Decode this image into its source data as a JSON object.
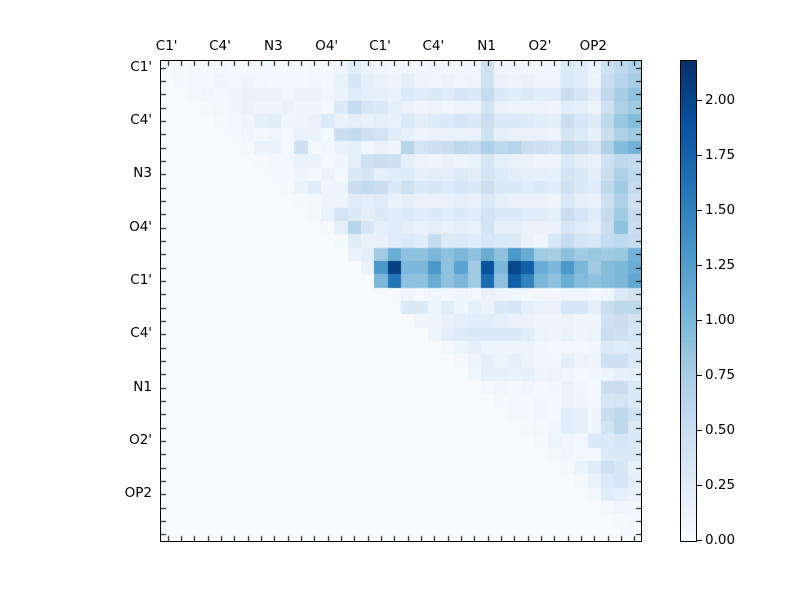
{
  "chart_data": {
    "type": "heatmap",
    "title": "",
    "colormap": "Blues",
    "vmin": 0.0,
    "vmax": 2.18,
    "grid_size": 36,
    "label_every": 4,
    "x_tick_labels": [
      "C1'",
      "C4'",
      "N3",
      "O4'",
      "C1'",
      "C4'",
      "N1",
      "O2'",
      "OP2"
    ],
    "y_tick_labels": [
      "C1'",
      "C4'",
      "N3",
      "O4'",
      "C1'",
      "C4'",
      "N1",
      "O2'",
      "OP2"
    ],
    "colorbar_tick_labels": [
      "0.00",
      "0.25",
      "0.50",
      "0.75",
      "1.00",
      "1.25",
      "1.50",
      "1.75",
      "2.00"
    ],
    "colorbar_tick_values": [
      0,
      0.25,
      0.5,
      0.75,
      1.0,
      1.25,
      1.5,
      1.75,
      2.0
    ],
    "colormap_stops": [
      [
        247,
        251,
        255
      ],
      [
        222,
        235,
        247
      ],
      [
        198,
        219,
        239
      ],
      [
        158,
        202,
        225
      ],
      [
        107,
        174,
        214
      ],
      [
        66,
        146,
        198
      ],
      [
        33,
        113,
        181
      ],
      [
        8,
        81,
        156
      ],
      [
        8,
        48,
        107
      ]
    ],
    "matrix": [
      [
        0.02,
        0.02,
        0.05,
        0.03,
        0.05,
        0.03,
        0.04,
        0.03,
        0.03,
        0.05,
        0.04,
        0.05,
        0.04,
        0.1,
        0.25,
        0.15,
        0.1,
        0.06,
        0.1,
        0.08,
        0.1,
        0.08,
        0.08,
        0.08,
        0.45,
        0.1,
        0.1,
        0.08,
        0.08,
        0.08,
        0.3,
        0.25,
        0.15,
        0.45,
        0.6,
        0.7
      ],
      [
        0,
        0.03,
        0.05,
        0.03,
        0.1,
        0.05,
        0.1,
        0.05,
        0.03,
        0.05,
        0.05,
        0.08,
        0.05,
        0.15,
        0.35,
        0.2,
        0.15,
        0.1,
        0.2,
        0.1,
        0.08,
        0.12,
        0.08,
        0.12,
        0.45,
        0.15,
        0.12,
        0.15,
        0.12,
        0.12,
        0.3,
        0.25,
        0.12,
        0.5,
        0.65,
        0.75
      ],
      [
        0,
        0,
        0.04,
        0.08,
        0.05,
        0.1,
        0.15,
        0.15,
        0.15,
        0.1,
        0.15,
        0.15,
        0.1,
        0.15,
        0.25,
        0.2,
        0.2,
        0.15,
        0.3,
        0.25,
        0.3,
        0.25,
        0.35,
        0.3,
        0.55,
        0.3,
        0.25,
        0.3,
        0.25,
        0.25,
        0.5,
        0.35,
        0.25,
        0.6,
        0.75,
        0.9
      ],
      [
        0,
        0,
        0,
        0.03,
        0.05,
        0.1,
        0.15,
        0.1,
        0.1,
        0.15,
        0.1,
        0.1,
        0.05,
        0.3,
        0.55,
        0.35,
        0.3,
        0.2,
        0.15,
        0.1,
        0.12,
        0.1,
        0.12,
        0.12,
        0.4,
        0.15,
        0.12,
        0.12,
        0.12,
        0.1,
        0.25,
        0.2,
        0.12,
        0.45,
        0.7,
        0.8
      ],
      [
        0,
        0,
        0,
        0,
        0.03,
        0.05,
        0.1,
        0.2,
        0.25,
        0.1,
        0.1,
        0.15,
        0.3,
        0.15,
        0.2,
        0.15,
        0.2,
        0.15,
        0.3,
        0.22,
        0.28,
        0.3,
        0.35,
        0.3,
        0.5,
        0.3,
        0.3,
        0.28,
        0.25,
        0.22,
        0.5,
        0.35,
        0.28,
        0.6,
        0.85,
        0.95
      ],
      [
        0,
        0,
        0,
        0,
        0,
        0.02,
        0.1,
        0.05,
        0.08,
        0.05,
        0.15,
        0.15,
        0.05,
        0.5,
        0.55,
        0.45,
        0.4,
        0.25,
        0.18,
        0.12,
        0.15,
        0.15,
        0.15,
        0.15,
        0.45,
        0.2,
        0.15,
        0.15,
        0.15,
        0.12,
        0.38,
        0.28,
        0.18,
        0.5,
        0.7,
        0.8
      ],
      [
        0,
        0,
        0,
        0,
        0,
        0,
        0.03,
        0.15,
        0.15,
        0.05,
        0.45,
        0.05,
        0.08,
        0.15,
        0.2,
        0.1,
        0.15,
        0.1,
        0.65,
        0.4,
        0.45,
        0.5,
        0.6,
        0.55,
        0.7,
        0.6,
        0.65,
        0.5,
        0.45,
        0.4,
        0.6,
        0.5,
        0.4,
        0.7,
        0.95,
        1.05
      ],
      [
        0,
        0,
        0,
        0,
        0,
        0,
        0,
        0.02,
        0.05,
        0.05,
        0.15,
        0.15,
        0.05,
        0.1,
        0.2,
        0.45,
        0.5,
        0.45,
        0.2,
        0.12,
        0.1,
        0.15,
        0.12,
        0.15,
        0.35,
        0.18,
        0.15,
        0.15,
        0.1,
        0.1,
        0.3,
        0.22,
        0.15,
        0.45,
        0.6,
        0.55
      ],
      [
        0,
        0,
        0,
        0,
        0,
        0,
        0,
        0,
        0.02,
        0.03,
        0.1,
        0.05,
        0.15,
        0.05,
        0.3,
        0.35,
        0.2,
        0.25,
        0.28,
        0.18,
        0.22,
        0.2,
        0.28,
        0.22,
        0.4,
        0.28,
        0.22,
        0.2,
        0.2,
        0.18,
        0.4,
        0.3,
        0.22,
        0.5,
        0.7,
        0.6
      ],
      [
        0,
        0,
        0,
        0,
        0,
        0,
        0,
        0,
        0,
        0.03,
        0.15,
        0.25,
        0.1,
        0.1,
        0.5,
        0.55,
        0.5,
        0.3,
        0.45,
        0.3,
        0.35,
        0.3,
        0.35,
        0.3,
        0.5,
        0.3,
        0.3,
        0.25,
        0.3,
        0.25,
        0.45,
        0.3,
        0.25,
        0.6,
        0.8,
        0.55
      ],
      [
        0,
        0,
        0,
        0,
        0,
        0,
        0,
        0,
        0,
        0,
        0.02,
        0.05,
        0.1,
        0.1,
        0.25,
        0.2,
        0.25,
        0.15,
        0.2,
        0.15,
        0.15,
        0.15,
        0.2,
        0.15,
        0.3,
        0.2,
        0.15,
        0.15,
        0.15,
        0.1,
        0.3,
        0.2,
        0.15,
        0.45,
        0.7,
        0.45
      ],
      [
        0,
        0,
        0,
        0,
        0,
        0,
        0,
        0,
        0,
        0,
        0,
        0.03,
        0.15,
        0.4,
        0.3,
        0.2,
        0.3,
        0.25,
        0.3,
        0.25,
        0.3,
        0.25,
        0.3,
        0.25,
        0.4,
        0.3,
        0.3,
        0.25,
        0.25,
        0.2,
        0.5,
        0.35,
        0.25,
        0.55,
        0.8,
        0.55
      ],
      [
        0,
        0,
        0,
        0,
        0,
        0,
        0,
        0,
        0,
        0,
        0,
        0,
        0.02,
        0.2,
        0.65,
        0.35,
        0.2,
        0.25,
        0.2,
        0.15,
        0.2,
        0.15,
        0.2,
        0.15,
        0.4,
        0.2,
        0.2,
        0.15,
        0.15,
        0.15,
        0.35,
        0.25,
        0.2,
        0.5,
        0.9,
        0.5
      ],
      [
        0,
        0,
        0,
        0,
        0,
        0,
        0,
        0,
        0,
        0,
        0,
        0,
        0,
        0.03,
        0.25,
        0.15,
        0.15,
        0.25,
        0.3,
        0.25,
        0.55,
        0.3,
        0.3,
        0.25,
        0.35,
        0.3,
        0.3,
        0.15,
        0.1,
        0.35,
        0.55,
        0.4,
        0.35,
        0.55,
        0.6,
        0.55
      ],
      [
        0,
        0,
        0,
        0,
        0,
        0,
        0,
        0,
        0,
        0,
        0,
        0,
        0,
        0,
        0.15,
        0.2,
        0.8,
        1.1,
        0.9,
        0.9,
        1.0,
        0.9,
        1.0,
        0.9,
        1.1,
        0.9,
        1.3,
        1.1,
        0.8,
        0.75,
        0.9,
        0.8,
        0.85,
        0.8,
        0.85,
        1.05
      ],
      [
        0,
        0,
        0,
        0,
        0,
        0,
        0,
        0,
        0,
        0,
        0,
        0,
        0,
        0,
        0,
        0.15,
        1.3,
        2.05,
        1.0,
        1.0,
        1.3,
        0.9,
        1.2,
        0.8,
        1.9,
        1.0,
        2.0,
        1.8,
        1.1,
        1.0,
        1.3,
        1.0,
        0.8,
        0.95,
        1.0,
        1.1
      ],
      [
        0,
        0,
        0,
        0,
        0,
        0,
        0,
        0,
        0,
        0,
        0,
        0,
        0,
        0,
        0,
        0,
        1.0,
        1.6,
        0.9,
        0.9,
        1.1,
        0.9,
        1.0,
        0.8,
        1.7,
        0.9,
        1.8,
        1.5,
        1.0,
        0.9,
        1.1,
        0.95,
        0.9,
        0.95,
        1.0,
        1.15
      ],
      [
        0,
        0,
        0,
        0,
        0,
        0,
        0,
        0,
        0,
        0,
        0,
        0,
        0,
        0,
        0,
        0,
        0,
        0.02,
        0.1,
        0.05,
        0.1,
        0.05,
        0.1,
        0.05,
        0.15,
        0.1,
        0.1,
        0.05,
        0.05,
        0.05,
        0.1,
        0.1,
        0.05,
        0.1,
        0.3,
        0.4
      ],
      [
        0,
        0,
        0,
        0,
        0,
        0,
        0,
        0,
        0,
        0,
        0,
        0,
        0,
        0,
        0,
        0,
        0,
        0,
        0.3,
        0.3,
        0.1,
        0.25,
        0.1,
        0.2,
        0.12,
        0.3,
        0.35,
        0.2,
        0.15,
        0.15,
        0.35,
        0.35,
        0.2,
        0.5,
        0.6,
        0.6
      ],
      [
        0,
        0,
        0,
        0,
        0,
        0,
        0,
        0,
        0,
        0,
        0,
        0,
        0,
        0,
        0,
        0,
        0,
        0,
        0,
        0.1,
        0.1,
        0.15,
        0.2,
        0.25,
        0.25,
        0.2,
        0.15,
        0.15,
        0.1,
        0.1,
        0.12,
        0.1,
        0.1,
        0.45,
        0.5,
        0.4
      ],
      [
        0,
        0,
        0,
        0,
        0,
        0,
        0,
        0,
        0,
        0,
        0,
        0,
        0,
        0,
        0,
        0,
        0,
        0,
        0,
        0,
        0.12,
        0.22,
        0.28,
        0.3,
        0.3,
        0.3,
        0.3,
        0.25,
        0.12,
        0.1,
        0.15,
        0.1,
        0.12,
        0.5,
        0.45,
        0.35
      ],
      [
        0,
        0,
        0,
        0,
        0,
        0,
        0,
        0,
        0,
        0,
        0,
        0,
        0,
        0,
        0,
        0,
        0,
        0,
        0,
        0,
        0,
        0.05,
        0.12,
        0.18,
        0.12,
        0.12,
        0.12,
        0.12,
        0.08,
        0.05,
        0.05,
        0.05,
        0.08,
        0.3,
        0.25,
        0.3
      ],
      [
        0,
        0,
        0,
        0,
        0,
        0,
        0,
        0,
        0,
        0,
        0,
        0,
        0,
        0,
        0,
        0,
        0,
        0,
        0,
        0,
        0,
        0,
        0.05,
        0.12,
        0.18,
        0.12,
        0.18,
        0.12,
        0.08,
        0.08,
        0.22,
        0.12,
        0.1,
        0.45,
        0.45,
        0.3
      ],
      [
        0,
        0,
        0,
        0,
        0,
        0,
        0,
        0,
        0,
        0,
        0,
        0,
        0,
        0,
        0,
        0,
        0,
        0,
        0,
        0,
        0,
        0,
        0,
        0.08,
        0.18,
        0.18,
        0.15,
        0.18,
        0.1,
        0.12,
        0.08,
        0.05,
        0.08,
        0.12,
        0.18,
        0.2
      ],
      [
        0,
        0,
        0,
        0,
        0,
        0,
        0,
        0,
        0,
        0,
        0,
        0,
        0,
        0,
        0,
        0,
        0,
        0,
        0,
        0,
        0,
        0,
        0,
        0,
        0.05,
        0.08,
        0.05,
        0.08,
        0.05,
        0.08,
        0.15,
        0.08,
        0.05,
        0.5,
        0.5,
        0.3
      ],
      [
        0,
        0,
        0,
        0,
        0,
        0,
        0,
        0,
        0,
        0,
        0,
        0,
        0,
        0,
        0,
        0,
        0,
        0,
        0,
        0,
        0,
        0,
        0,
        0,
        0,
        0.03,
        0.05,
        0.05,
        0.08,
        0.05,
        0.15,
        0.1,
        0.05,
        0.35,
        0.4,
        0.3
      ],
      [
        0,
        0,
        0,
        0,
        0,
        0,
        0,
        0,
        0,
        0,
        0,
        0,
        0,
        0,
        0,
        0,
        0,
        0,
        0,
        0,
        0,
        0,
        0,
        0,
        0,
        0,
        0.03,
        0.05,
        0.08,
        0.05,
        0.25,
        0.2,
        0.1,
        0.5,
        0.6,
        0.45
      ],
      [
        0,
        0,
        0,
        0,
        0,
        0,
        0,
        0,
        0,
        0,
        0,
        0,
        0,
        0,
        0,
        0,
        0,
        0,
        0,
        0,
        0,
        0,
        0,
        0,
        0,
        0,
        0,
        0.03,
        0.05,
        0.08,
        0.25,
        0.2,
        0.1,
        0.4,
        0.6,
        0.3
      ],
      [
        0,
        0,
        0,
        0,
        0,
        0,
        0,
        0,
        0,
        0,
        0,
        0,
        0,
        0,
        0,
        0,
        0,
        0,
        0,
        0,
        0,
        0,
        0,
        0,
        0,
        0,
        0,
        0,
        0.03,
        0.12,
        0.08,
        0.05,
        0.3,
        0.3,
        0.35,
        0.3
      ],
      [
        0,
        0,
        0,
        0,
        0,
        0,
        0,
        0,
        0,
        0,
        0,
        0,
        0,
        0,
        0,
        0,
        0,
        0,
        0,
        0,
        0,
        0,
        0,
        0,
        0,
        0,
        0,
        0,
        0,
        0.03,
        0.08,
        0.05,
        0.05,
        0.3,
        0.3,
        0.3
      ],
      [
        0,
        0,
        0,
        0,
        0,
        0,
        0,
        0,
        0,
        0,
        0,
        0,
        0,
        0,
        0,
        0,
        0,
        0,
        0,
        0,
        0,
        0,
        0,
        0,
        0,
        0,
        0,
        0,
        0,
        0,
        0.03,
        0.15,
        0.25,
        0.45,
        0.35,
        0.15
      ],
      [
        0,
        0,
        0,
        0,
        0,
        0,
        0,
        0,
        0,
        0,
        0,
        0,
        0,
        0,
        0,
        0,
        0,
        0,
        0,
        0,
        0,
        0,
        0,
        0,
        0,
        0,
        0,
        0,
        0,
        0,
        0,
        0.03,
        0.15,
        0.3,
        0.35,
        0.2
      ],
      [
        0,
        0,
        0,
        0,
        0,
        0,
        0,
        0,
        0,
        0,
        0,
        0,
        0,
        0,
        0,
        0,
        0,
        0,
        0,
        0,
        0,
        0,
        0,
        0,
        0,
        0,
        0,
        0,
        0,
        0,
        0,
        0,
        0.03,
        0.25,
        0.2,
        0.15
      ],
      [
        0,
        0,
        0,
        0,
        0,
        0,
        0,
        0,
        0,
        0,
        0,
        0,
        0,
        0,
        0,
        0,
        0,
        0,
        0,
        0,
        0,
        0,
        0,
        0,
        0,
        0,
        0,
        0,
        0,
        0,
        0,
        0,
        0,
        0.03,
        0.08,
        0.08
      ],
      [
        0,
        0,
        0,
        0,
        0,
        0,
        0,
        0,
        0,
        0,
        0,
        0,
        0,
        0,
        0,
        0,
        0,
        0,
        0,
        0,
        0,
        0,
        0,
        0,
        0,
        0,
        0,
        0,
        0,
        0,
        0,
        0,
        0,
        0,
        0.02,
        0.05
      ],
      [
        0,
        0,
        0,
        0,
        0,
        0,
        0,
        0,
        0,
        0,
        0,
        0,
        0,
        0,
        0,
        0,
        0,
        0,
        0,
        0,
        0,
        0,
        0,
        0,
        0,
        0,
        0,
        0,
        0,
        0,
        0,
        0,
        0,
        0,
        0,
        0.02
      ]
    ]
  }
}
